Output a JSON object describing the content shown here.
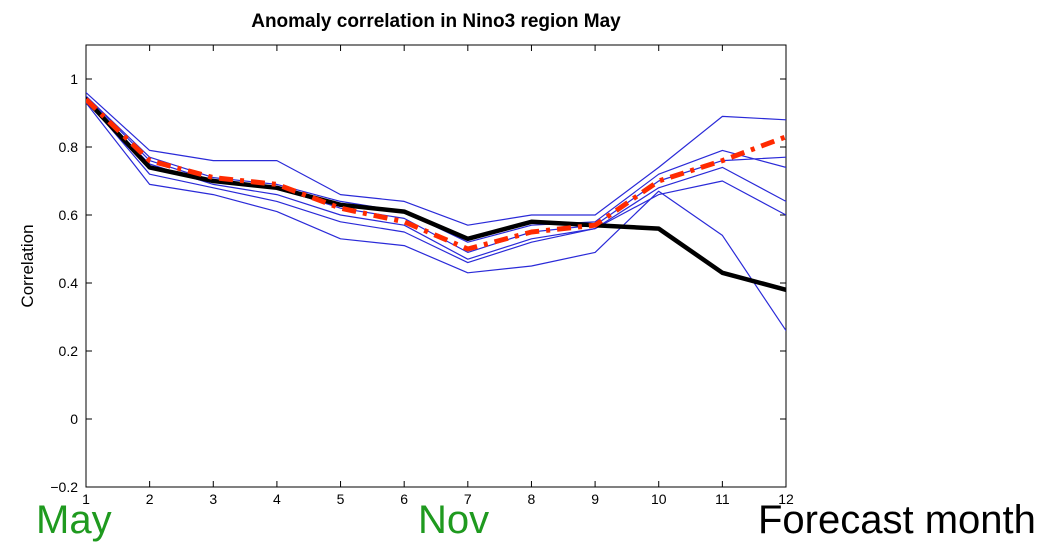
{
  "chart_data": {
    "type": "line",
    "title": "Anomaly correlation in Nino3 region May",
    "xlabel": "",
    "ylabel": "Correlation",
    "xlim": [
      1,
      12
    ],
    "ylim": [
      -0.2,
      1.1
    ],
    "x": [
      1,
      2,
      3,
      4,
      5,
      6,
      7,
      8,
      9,
      10,
      11,
      12
    ],
    "x_tick_labels": [
      "1",
      "2",
      "3",
      "4",
      "5",
      "6",
      "7",
      "8",
      "9",
      "10",
      "11",
      "12"
    ],
    "y_ticks": [
      -0.2,
      0,
      0.2,
      0.4,
      0.6,
      0.8,
      1
    ],
    "y_tick_labels": [
      "−0.2",
      "0",
      "0.2",
      "0.4",
      "0.6",
      "0.8",
      "1"
    ],
    "grid": false,
    "series": [
      {
        "style": "thin",
        "color": "#2a2ad8",
        "values": [
          0.96,
          0.79,
          0.76,
          0.76,
          0.66,
          0.64,
          0.57,
          0.6,
          0.6,
          0.74,
          0.89,
          0.88
        ]
      },
      {
        "style": "thin",
        "color": "#2a2ad8",
        "values": [
          0.95,
          0.77,
          0.71,
          0.69,
          0.64,
          0.61,
          0.52,
          0.57,
          0.58,
          0.72,
          0.79,
          0.74
        ]
      },
      {
        "style": "thin",
        "color": "#2a2ad8",
        "values": [
          0.95,
          0.76,
          0.7,
          0.68,
          0.62,
          0.59,
          0.49,
          0.55,
          0.57,
          0.7,
          0.76,
          0.77
        ]
      },
      {
        "style": "thin",
        "color": "#2a2ad8",
        "values": [
          0.94,
          0.75,
          0.69,
          0.66,
          0.6,
          0.57,
          0.47,
          0.53,
          0.56,
          0.68,
          0.74,
          0.64
        ]
      },
      {
        "style": "thin",
        "color": "#2a2ad8",
        "values": [
          0.94,
          0.72,
          0.68,
          0.64,
          0.58,
          0.55,
          0.46,
          0.52,
          0.56,
          0.66,
          0.7,
          0.6
        ]
      },
      {
        "style": "thin",
        "color": "#2a2ad8",
        "values": [
          0.93,
          0.69,
          0.66,
          0.61,
          0.53,
          0.51,
          0.43,
          0.45,
          0.49,
          0.67,
          0.54,
          0.26
        ]
      },
      {
        "style": "thick",
        "color": "#000000",
        "values": [
          0.94,
          0.74,
          0.7,
          0.68,
          0.63,
          0.61,
          0.53,
          0.58,
          0.57,
          0.56,
          0.43,
          0.38
        ]
      },
      {
        "style": "dashed",
        "color": "#ff2a00",
        "values": [
          0.94,
          0.76,
          0.71,
          0.69,
          0.62,
          0.58,
          0.5,
          0.55,
          0.57,
          0.7,
          0.76,
          0.83
        ]
      }
    ]
  },
  "annotations": {
    "may": "May",
    "nov": "Nov",
    "forecast_month": "Forecast month",
    "may_color": "#1f9a1f",
    "nov_color": "#1f9a1f",
    "forecast_month_color": "#000000"
  }
}
